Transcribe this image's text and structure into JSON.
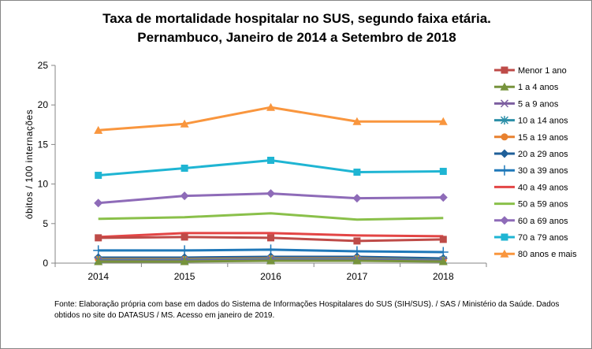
{
  "chart_data": {
    "type": "line",
    "title": "Taxa de mortalidade hospitalar no SUS, segundo faixa etária.",
    "subtitle": "Pernambuco, Janeiro de 2014 a Setembro de 2018",
    "ylabel": "óbitos / 100 internações",
    "xlabel": "",
    "categories": [
      "2014",
      "2015",
      "2016",
      "2017",
      "2018"
    ],
    "ylim": [
      0,
      25
    ],
    "yticks": [
      0,
      5,
      10,
      15,
      20,
      25
    ],
    "grid": false,
    "legend": "right",
    "series": [
      {
        "name": "Menor 1 ano",
        "color": "#BE4B48",
        "marker": "square",
        "values": [
          3.2,
          3.3,
          3.2,
          2.8,
          3.0
        ]
      },
      {
        "name": "1 a 4 anos",
        "color": "#77933C",
        "marker": "triangle",
        "values": [
          0.2,
          0.2,
          0.3,
          0.3,
          0.2
        ]
      },
      {
        "name": "5 a 9 anos",
        "color": "#7D5FA0",
        "marker": "x",
        "values": [
          0.3,
          0.3,
          0.4,
          0.4,
          0.3
        ]
      },
      {
        "name": "10 a 14 anos",
        "color": "#2C8FA8",
        "marker": "star",
        "values": [
          0.4,
          0.4,
          0.5,
          0.5,
          0.4
        ]
      },
      {
        "name": "15 a 19 anos",
        "color": "#E8812F",
        "marker": "circle",
        "values": [
          0.5,
          0.5,
          0.6,
          0.6,
          0.4
        ]
      },
      {
        "name": "20 a 29 anos",
        "color": "#1F5F99",
        "marker": "diamond",
        "values": [
          0.7,
          0.7,
          0.8,
          0.8,
          0.6
        ]
      },
      {
        "name": "30 a 39 anos",
        "color": "#1F78B9",
        "marker": "plus",
        "values": [
          1.6,
          1.6,
          1.7,
          1.5,
          1.4
        ]
      },
      {
        "name": "40 a 49 anos",
        "color": "#E34545",
        "marker": "none",
        "values": [
          3.3,
          3.8,
          3.8,
          3.5,
          3.4
        ]
      },
      {
        "name": "50 a 59 anos",
        "color": "#8AC04A",
        "marker": "none",
        "values": [
          5.6,
          5.8,
          6.3,
          5.5,
          5.7
        ]
      },
      {
        "name": "60 a 69 anos",
        "color": "#8E6BB8",
        "marker": "diamond",
        "values": [
          7.6,
          8.5,
          8.8,
          8.2,
          8.3
        ]
      },
      {
        "name": "70 a 79 anos",
        "color": "#1FB5D3",
        "marker": "square",
        "values": [
          11.1,
          12.0,
          13.0,
          11.5,
          11.6
        ]
      },
      {
        "name": "80 anos e mais",
        "color": "#F9963E",
        "marker": "triangle",
        "values": [
          16.8,
          17.6,
          19.7,
          17.9,
          17.9
        ]
      }
    ]
  },
  "footnote": "Fonte: Elaboração própria com base em dados do  Sistema de Informações Hospitalares do SUS (SIH/SUS). / SAS / Ministério da Saúde. Dados obtidos no site do DATASUS / MS. Acesso em janeiro de 2019."
}
